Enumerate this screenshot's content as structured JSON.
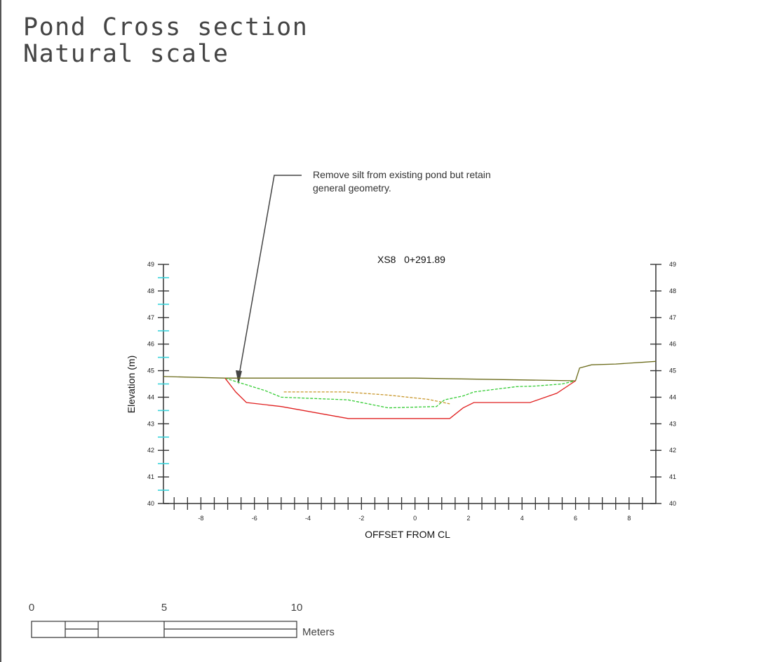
{
  "title": {
    "line1": "Pond Cross section",
    "line2": "Natural scale"
  },
  "annotation": {
    "note_line1": "Remove silt from existing pond but retain",
    "note_line2": "general geometry."
  },
  "section": {
    "label": "XS8   0+291.89"
  },
  "axes": {
    "ylabel": "Elevation (m)",
    "xlabel": "OFFSET FROM CL",
    "y_ticks": [
      "40",
      "41",
      "42",
      "43",
      "44",
      "45",
      "46",
      "47",
      "48",
      "49"
    ],
    "x_ticks": [
      "-8",
      "-6",
      "-4",
      "-2",
      "0",
      "2",
      "4",
      "6",
      "8"
    ],
    "xlim": [
      -9.4,
      9.0
    ],
    "ylim": [
      40,
      49
    ]
  },
  "colors": {
    "existing_ground": "#33cc33",
    "proposed": "#e02020",
    "silt_top": "#c8962a",
    "original_ground": "#6b6b1a",
    "minor_tick": "#3ad4dc",
    "axis": "#333333"
  },
  "chart_data": {
    "type": "line",
    "series": [
      {
        "key": "original_ground",
        "style": "solid",
        "points": [
          [
            -9.4,
            44.78
          ],
          [
            -7.1,
            44.72
          ],
          [
            -0.0,
            44.72
          ],
          [
            6.0,
            44.62
          ],
          [
            6.15,
            45.1
          ],
          [
            6.6,
            45.22
          ],
          [
            7.5,
            45.25
          ],
          [
            8.0,
            45.28
          ],
          [
            9.0,
            45.35
          ]
        ]
      },
      {
        "key": "existing_ground",
        "style": "dashed",
        "points": [
          [
            -7.1,
            44.72
          ],
          [
            -5.6,
            44.25
          ],
          [
            -5.0,
            44.0
          ],
          [
            -2.5,
            43.9
          ],
          [
            -1.0,
            43.6
          ],
          [
            0.8,
            43.65
          ],
          [
            1.1,
            43.9
          ],
          [
            1.8,
            44.05
          ],
          [
            2.2,
            44.2
          ],
          [
            3.8,
            44.4
          ],
          [
            4.5,
            44.42
          ],
          [
            5.5,
            44.5
          ],
          [
            6.0,
            44.62
          ]
        ]
      },
      {
        "key": "proposed",
        "style": "solid",
        "points": [
          [
            -7.1,
            44.72
          ],
          [
            -6.7,
            44.2
          ],
          [
            -6.3,
            43.8
          ],
          [
            -5.0,
            43.65
          ],
          [
            -2.5,
            43.2
          ],
          [
            -1.0,
            43.2
          ],
          [
            1.3,
            43.2
          ],
          [
            1.8,
            43.6
          ],
          [
            2.2,
            43.8
          ],
          [
            4.3,
            43.8
          ],
          [
            5.3,
            44.15
          ],
          [
            6.0,
            44.62
          ]
        ]
      },
      {
        "key": "silt_top",
        "style": "dashed",
        "points": [
          [
            -4.9,
            44.2
          ],
          [
            -2.6,
            44.2
          ],
          [
            -1.0,
            44.08
          ],
          [
            0.5,
            43.92
          ],
          [
            1.3,
            43.75
          ]
        ]
      }
    ]
  },
  "scale_bar": {
    "labels": [
      "0",
      "5",
      "10"
    ],
    "unit": "Meters"
  }
}
